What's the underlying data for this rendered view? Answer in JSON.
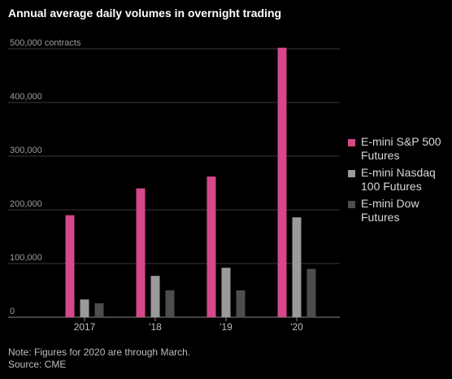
{
  "chart_data": {
    "type": "bar",
    "title": "Annual average daily volumes in overnight trading",
    "categories": [
      "2017",
      "'18",
      "'19",
      "'20"
    ],
    "series": [
      {
        "name": "E-mini S&P 500 Futures",
        "values": [
          190000,
          240000,
          262000,
          502000
        ],
        "color": "#d6488a"
      },
      {
        "name": "E-mini Nasdaq 100 Futures",
        "values": [
          33000,
          77000,
          92000,
          186000
        ],
        "color": "#9a9a9a"
      },
      {
        "name": "E-mini Dow Futures",
        "values": [
          26000,
          50000,
          50000,
          90000
        ],
        "color": "#4d4d4d"
      }
    ],
    "y_ticks": [
      {
        "value": 0,
        "label": "0"
      },
      {
        "value": 100000,
        "label": "100,000"
      },
      {
        "value": 200000,
        "label": "200,000"
      },
      {
        "value": 300000,
        "label": "300,000"
      },
      {
        "value": 400000,
        "label": "400,000"
      },
      {
        "value": 500000,
        "label": "500,000 contracts"
      }
    ],
    "ylim": [
      0,
      500000
    ],
    "grid": true,
    "legend_position": "right"
  },
  "legend": {
    "items": [
      {
        "label": "E-mini S&P 500 Futures",
        "color": "#d6488a"
      },
      {
        "label": "E-mini Nasdaq 100 Futures",
        "color": "#9a9a9a"
      },
      {
        "label": "E-mini Dow Futures",
        "color": "#4d4d4d"
      }
    ]
  },
  "footnote": {
    "note": "Note: Figures for 2020 are through March.",
    "source": "Source: CME"
  }
}
